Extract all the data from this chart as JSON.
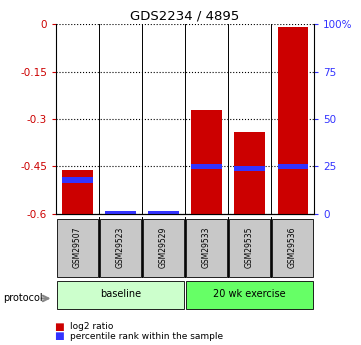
{
  "title": "GDS2234 / 4895",
  "samples": [
    "GSM29507",
    "GSM29523",
    "GSM29529",
    "GSM29533",
    "GSM29535",
    "GSM29536"
  ],
  "log2_ratio": [
    -0.46,
    -0.59,
    -0.59,
    -0.27,
    -0.34,
    -0.01
  ],
  "percentile_rank": [
    18,
    0,
    0,
    25,
    24,
    25
  ],
  "ylim_min": -0.6,
  "ylim_max": 0.0,
  "yticks": [
    0.0,
    -0.15,
    -0.3,
    -0.45,
    -0.6
  ],
  "ytick_labels": [
    "0",
    "-0.15",
    "-0.3",
    "-0.45",
    "-0.6"
  ],
  "right_yticks_pct": [
    100,
    75,
    50,
    25,
    0
  ],
  "right_ytick_labels": [
    "100%",
    "75",
    "50",
    "25",
    "0"
  ],
  "bar_color_red": "#cc0000",
  "bar_color_blue": "#3333ff",
  "groups": [
    {
      "label": "baseline",
      "indices": [
        0,
        1,
        2
      ],
      "color": "#ccffcc"
    },
    {
      "label": "20 wk exercise",
      "indices": [
        3,
        4,
        5
      ],
      "color": "#66ff66"
    }
  ],
  "protocol_label": "protocol",
  "legend_red_label": "log2 ratio",
  "legend_blue_label": "percentile rank within the sample",
  "bar_width": 0.7,
  "left_axis_color": "#cc0000",
  "right_axis_color": "#3333ff",
  "background_color": "#ffffff",
  "gray_color": "#c8c8c8",
  "divider_color": "#000000",
  "grid_color": "#000000"
}
